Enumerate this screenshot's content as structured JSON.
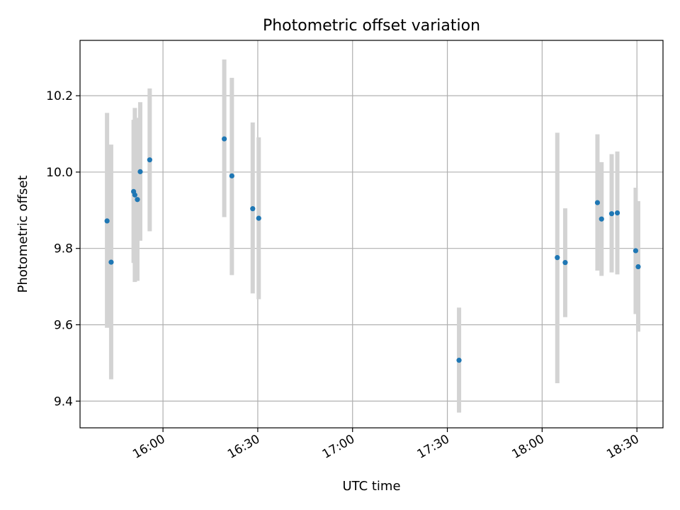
{
  "chart_data": {
    "type": "scatter",
    "title": "Photometric offset variation",
    "xlabel": "UTC time",
    "ylabel": "Photometric offset",
    "x_unit": "minutes after 15:00 UTC",
    "xlim": [
      33.75,
      218.25
    ],
    "ylim": [
      9.33,
      10.345
    ],
    "grid": true,
    "x_ticks": [
      {
        "value": 60,
        "label": "16:00"
      },
      {
        "value": 90,
        "label": "16:30"
      },
      {
        "value": 120,
        "label": "17:00"
      },
      {
        "value": 150,
        "label": "17:30"
      },
      {
        "value": 180,
        "label": "18:00"
      },
      {
        "value": 210,
        "label": "18:30"
      }
    ],
    "y_ticks": [
      {
        "value": 9.4,
        "label": "9.4"
      },
      {
        "value": 9.6,
        "label": "9.6"
      },
      {
        "value": 9.8,
        "label": "9.8"
      },
      {
        "value": 10.0,
        "label": "10.0"
      },
      {
        "value": 10.2,
        "label": "10.2"
      }
    ],
    "colors": {
      "point": "#1f77b4",
      "errorbar": "#d3d3d3",
      "grid": "#b0b0b0"
    },
    "points": [
      {
        "x": 42.3,
        "y": 9.872,
        "ylow": 9.592,
        "yhigh": 10.155
      },
      {
        "x": 43.6,
        "y": 9.764,
        "ylow": 9.457,
        "yhigh": 10.072
      },
      {
        "x": 50.7,
        "y": 9.949,
        "ylow": 9.762,
        "yhigh": 10.137
      },
      {
        "x": 51.1,
        "y": 9.94,
        "ylow": 9.712,
        "yhigh": 10.168
      },
      {
        "x": 51.9,
        "y": 9.928,
        "ylow": 9.715,
        "yhigh": 10.142
      },
      {
        "x": 52.8,
        "y": 10.001,
        "ylow": 9.82,
        "yhigh": 10.183
      },
      {
        "x": 55.8,
        "y": 10.032,
        "ylow": 9.845,
        "yhigh": 10.219
      },
      {
        "x": 79.4,
        "y": 10.087,
        "ylow": 9.882,
        "yhigh": 10.295
      },
      {
        "x": 81.8,
        "y": 9.99,
        "ylow": 9.73,
        "yhigh": 10.247
      },
      {
        "x": 88.4,
        "y": 9.904,
        "ylow": 9.682,
        "yhigh": 10.13
      },
      {
        "x": 90.3,
        "y": 9.879,
        "ylow": 9.667,
        "yhigh": 10.091
      },
      {
        "x": 153.7,
        "y": 9.507,
        "ylow": 9.37,
        "yhigh": 9.645
      },
      {
        "x": 184.8,
        "y": 9.776,
        "ylow": 9.447,
        "yhigh": 10.103
      },
      {
        "x": 187.3,
        "y": 9.763,
        "ylow": 9.62,
        "yhigh": 9.905
      },
      {
        "x": 197.5,
        "y": 9.92,
        "ylow": 9.742,
        "yhigh": 10.099
      },
      {
        "x": 198.8,
        "y": 9.877,
        "ylow": 9.728,
        "yhigh": 10.026
      },
      {
        "x": 202.0,
        "y": 9.891,
        "ylow": 9.737,
        "yhigh": 10.047
      },
      {
        "x": 203.8,
        "y": 9.893,
        "ylow": 9.732,
        "yhigh": 10.054
      },
      {
        "x": 209.6,
        "y": 9.794,
        "ylow": 9.628,
        "yhigh": 9.959
      },
      {
        "x": 210.4,
        "y": 9.752,
        "ylow": 9.582,
        "yhigh": 9.924
      }
    ]
  }
}
